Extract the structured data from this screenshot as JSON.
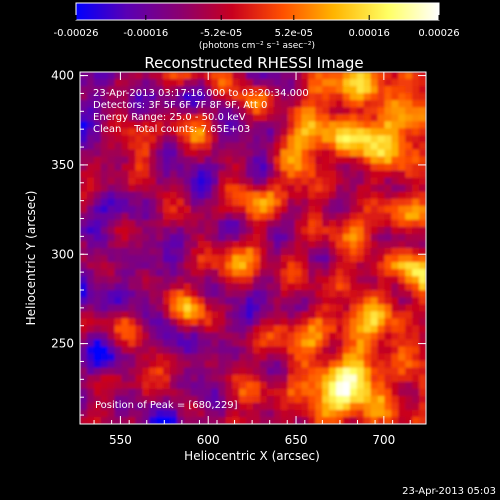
{
  "colorbar": {
    "tick_labels": [
      "-0.00026",
      "-0.00016",
      "-5.2e-05",
      "5.2e-05",
      "0.00016",
      "0.00026"
    ],
    "tick_values": [
      -0.00026,
      -0.00016,
      -5.2e-05,
      5.2e-05,
      0.00016,
      0.00026
    ],
    "range": [
      -0.00026,
      0.00026
    ],
    "unit_label": "(photons cm⁻² s⁻¹ asec⁻²)",
    "colors": [
      "#0000ff",
      "#5a00b4",
      "#8c006e",
      "#c8001e",
      "#ff5000",
      "#ffb400",
      "#ffff64",
      "#ffffff"
    ]
  },
  "chart_data": {
    "type": "heatmap",
    "title": "Reconstructed RHESSI Image",
    "xlabel": "Heliocentric X (arcsec)",
    "ylabel": "Heliocentric Y (arcsec)",
    "xlim": [
      527,
      724
    ],
    "ylim": [
      205,
      402
    ],
    "x_ticks": [
      550,
      600,
      650,
      700
    ],
    "y_ticks": [
      250,
      300,
      350,
      400
    ],
    "annotations": [
      "23-Apr-2013 03:17:16.000 to 03:20:34.000",
      "Detectors: 3F 5F 6F 7F 8F 9F, Att 0",
      "Energy Range: 25.0 - 50.0 keV",
      "Clean    Total counts: 7.65E+03",
      "Position of Peak = [680,229]"
    ],
    "peak": [
      680,
      229
    ],
    "bright_regions": [
      [
        680,
        229
      ],
      [
        700,
        370
      ],
      [
        660,
        375
      ],
      [
        565,
        352
      ]
    ]
  },
  "footer": {
    "timestamp": "23-Apr-2013 05:03"
  }
}
